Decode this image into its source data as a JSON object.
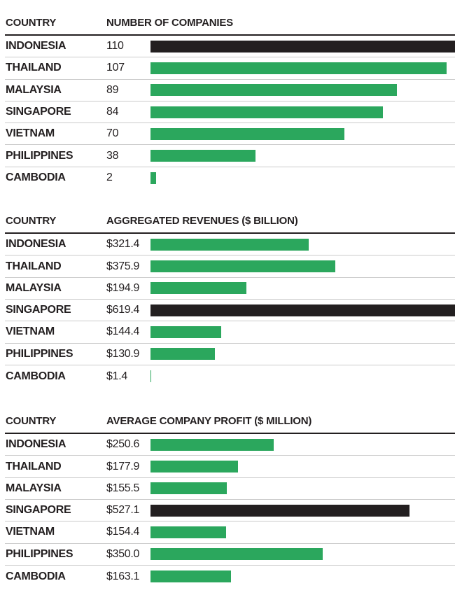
{
  "page": {
    "background": "#ffffff"
  },
  "colors": {
    "bar_green": "#2ba75d",
    "bar_highlight_black": "#231f20",
    "text": "#231f20",
    "row_divider": "#cbcbcb",
    "header_rule": "#231f20"
  },
  "chart_data": [
    {
      "type": "bar",
      "orientation": "horizontal",
      "country_header": "COUNTRY",
      "title": "NUMBER OF COMPANIES",
      "categories": [
        "INDONESIA",
        "THAILAND",
        "MALAYSIA",
        "SINGAPORE",
        "VIETNAM",
        "PHILIPPINES",
        "CAMBODIA"
      ],
      "values": [
        110,
        107,
        89,
        84,
        70,
        38,
        2
      ],
      "value_labels": [
        "110",
        "107",
        "89",
        "84",
        "70",
        "38",
        "2"
      ],
      "highlight_index": 0,
      "axis_max": 110,
      "grid": false,
      "legend": false
    },
    {
      "type": "bar",
      "orientation": "horizontal",
      "country_header": "COUNTRY",
      "title": "AGGREGATED REVENUES ($ BILLION)",
      "categories": [
        "INDONESIA",
        "THAILAND",
        "MALAYSIA",
        "SINGAPORE",
        "VIETNAM",
        "PHILIPPINES",
        "CAMBODIA"
      ],
      "values": [
        321.4,
        375.9,
        194.9,
        619.4,
        144.4,
        130.9,
        1.4
      ],
      "value_labels": [
        "$321.4",
        "$375.9",
        "$194.9",
        "$619.4",
        "$144.4",
        "$130.9",
        "$1.4"
      ],
      "highlight_index": 3,
      "axis_max": 619.4,
      "grid": false,
      "legend": false
    },
    {
      "type": "bar",
      "orientation": "horizontal",
      "country_header": "COUNTRY",
      "title": "AVERAGE COMPANY PROFIT ($ MILLION)",
      "categories": [
        "INDONESIA",
        "THAILAND",
        "MALAYSIA",
        "SINGAPORE",
        "VIETNAM",
        "PHILIPPINES",
        "CAMBODIA"
      ],
      "values": [
        250.6,
        177.9,
        155.5,
        527.1,
        154.4,
        350.0,
        163.1
      ],
      "value_labels": [
        "$250.6",
        "$177.9",
        "$155.5",
        "$527.1",
        "$154.4",
        "$350.0",
        "$163.1"
      ],
      "highlight_index": 3,
      "axis_max": 619.4,
      "grid": false,
      "legend": false
    }
  ]
}
